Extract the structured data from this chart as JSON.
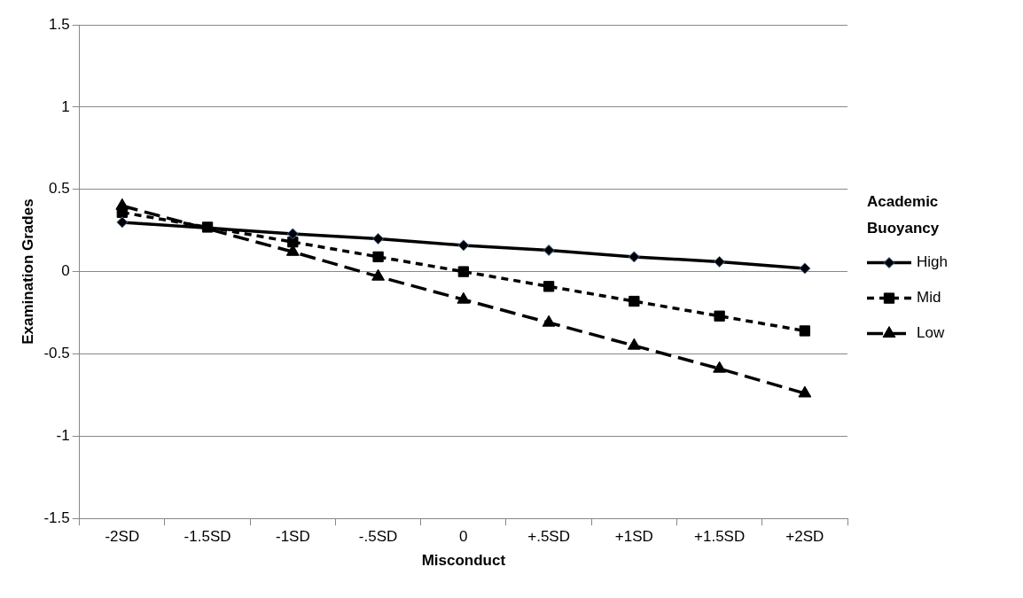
{
  "chart_data": {
    "type": "line",
    "xlabel": "Misconduct",
    "ylabel": "Examination Grades",
    "legend_title": "Academic Buoyancy",
    "legend": "right",
    "grid": "y",
    "categories": [
      "-2SD",
      "-1.5SD",
      "-1SD",
      "-.5SD",
      "0",
      "+.5SD",
      "+1SD",
      "+1.5SD",
      "+2SD"
    ],
    "ylim": [
      -1.5,
      1.5
    ],
    "yticks": [
      -1.5,
      -1,
      -0.5,
      0,
      0.5,
      1,
      1.5
    ],
    "series": [
      {
        "name": "High",
        "color": "#000000",
        "marker": "diamond",
        "line_style": "solid",
        "values": [
          0.3,
          null,
          0.23,
          0.2,
          0.16,
          0.13,
          0.09,
          0.06,
          0.02
        ]
      },
      {
        "name": "Mid",
        "color": "#000000",
        "marker": "square",
        "line_style": "dotted",
        "values": [
          0.36,
          0.27,
          0.18,
          0.09,
          0,
          -0.09,
          -0.18,
          -0.27,
          -0.36
        ]
      },
      {
        "name": "Low",
        "color": "#000000",
        "marker": "triangle",
        "line_style": "dashed",
        "values": [
          0.4,
          null,
          0.12,
          -0.03,
          -0.17,
          -0.31,
          -0.45,
          -0.59,
          -0.74
        ]
      }
    ]
  }
}
